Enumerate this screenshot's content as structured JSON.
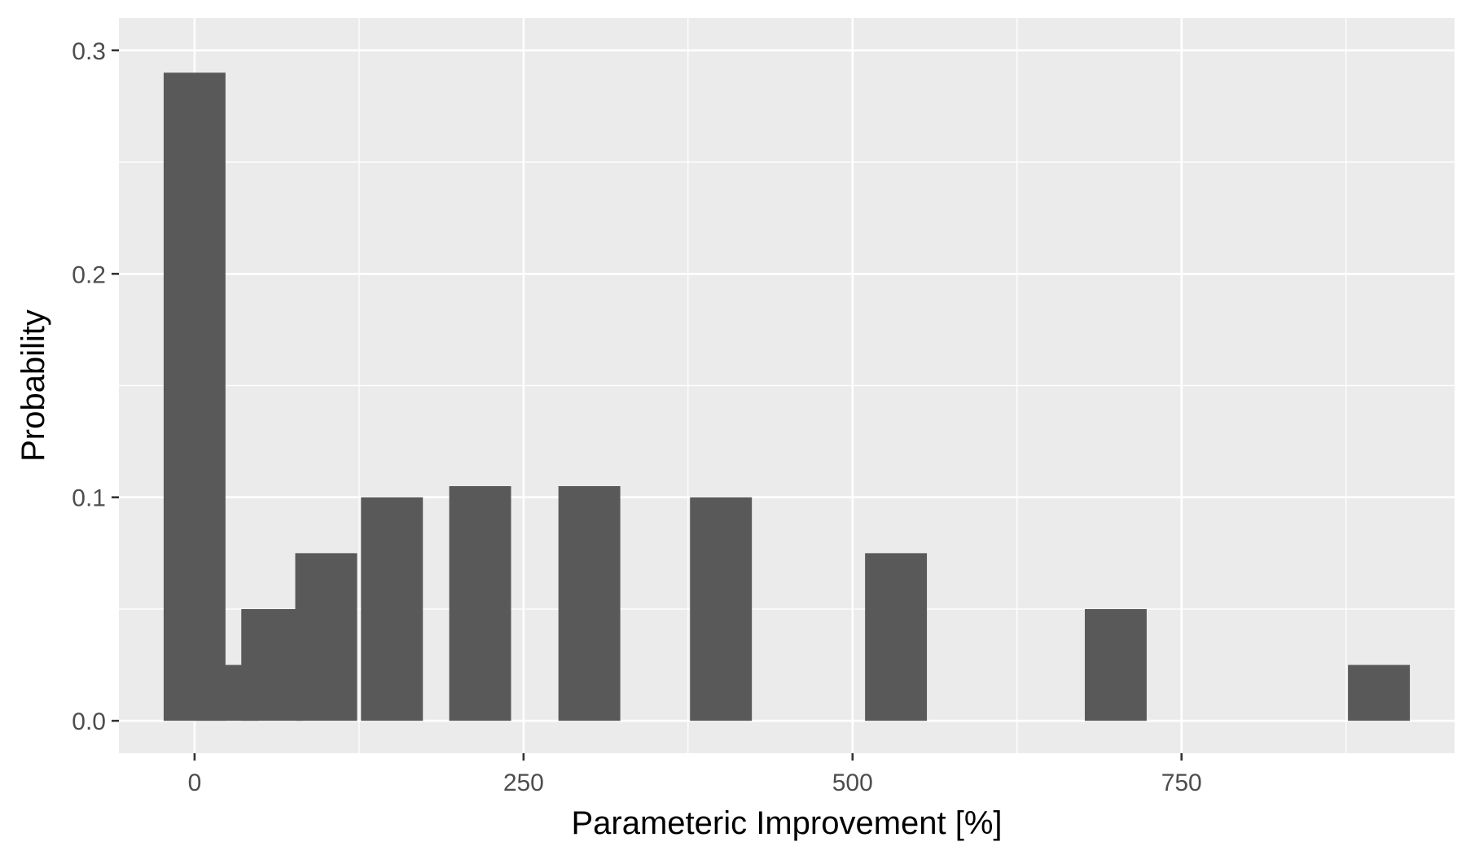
{
  "chart_data": {
    "type": "bar",
    "title": "",
    "xlabel": "Parameteric Improvement [%]",
    "ylabel": "Probability",
    "x": [
      0,
      25,
      59,
      100,
      150,
      217,
      300,
      400,
      533,
      700,
      900
    ],
    "values": [
      0.29,
      0.025,
      0.05,
      0.075,
      0.1,
      0.105,
      0.105,
      0.1,
      0.075,
      0.05,
      0.025
    ],
    "bar_width": 47,
    "xlim": [
      -57.5,
      957.5
    ],
    "ylim": [
      0,
      0.3
    ],
    "x_ticks": [
      0,
      250,
      500,
      750
    ],
    "x_tick_labels": [
      "0",
      "250",
      "500",
      "750"
    ],
    "y_ticks": [
      0,
      0.1,
      0.2,
      0.3
    ],
    "y_tick_labels": [
      "0.0",
      "0.1",
      "0.2",
      "0.3"
    ],
    "grid": true,
    "colors": {
      "panel_background": "#ebebeb",
      "grid_major": "#ffffff",
      "bar_fill": "#595959",
      "tick_text": "#4d4d4d",
      "tick_mark": "#333333",
      "title_text": "#000000"
    }
  }
}
